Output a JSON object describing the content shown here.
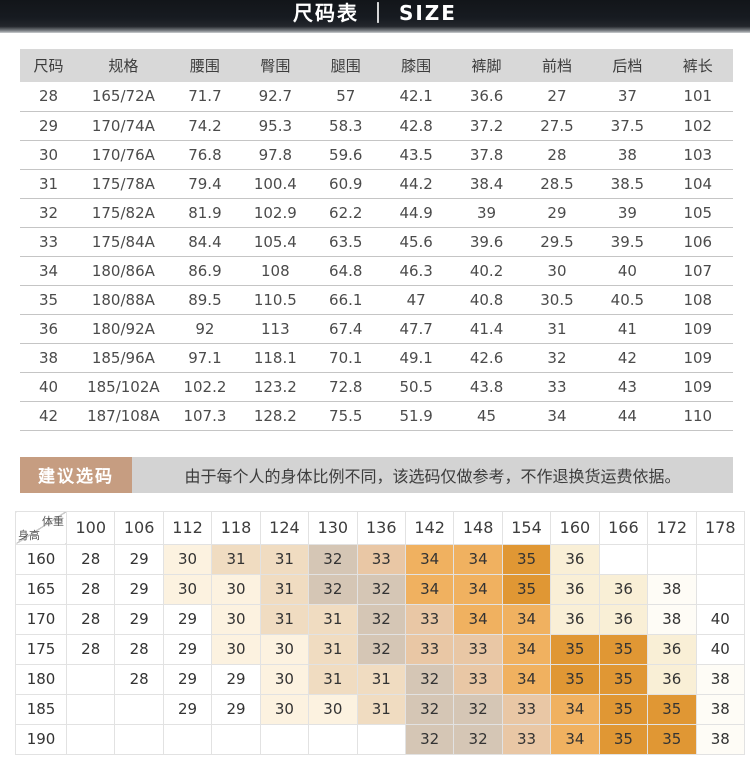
{
  "banner": {
    "title": "尺码表 ｜ SIZE",
    "bg_color": "#171b21",
    "text_color": "#ffffff"
  },
  "size_table": {
    "headers": [
      "尺码",
      "规格",
      "腰围",
      "臀围",
      "腿围",
      "膝围",
      "裤脚",
      "前档",
      "后档",
      "裤长"
    ],
    "rows": [
      [
        "28",
        "165/72A",
        "71.7",
        "92.7",
        "57",
        "42.1",
        "36.6",
        "27",
        "37",
        "101"
      ],
      [
        "29",
        "170/74A",
        "74.2",
        "95.3",
        "58.3",
        "42.8",
        "37.2",
        "27.5",
        "37.5",
        "102"
      ],
      [
        "30",
        "170/76A",
        "76.8",
        "97.8",
        "59.6",
        "43.5",
        "37.8",
        "28",
        "38",
        "103"
      ],
      [
        "31",
        "175/78A",
        "79.4",
        "100.4",
        "60.9",
        "44.2",
        "38.4",
        "28.5",
        "38.5",
        "104"
      ],
      [
        "32",
        "175/82A",
        "81.9",
        "102.9",
        "62.2",
        "44.9",
        "39",
        "29",
        "39",
        "105"
      ],
      [
        "33",
        "175/84A",
        "84.4",
        "105.4",
        "63.5",
        "45.6",
        "39.6",
        "29.5",
        "39.5",
        "106"
      ],
      [
        "34",
        "180/86A",
        "86.9",
        "108",
        "64.8",
        "46.3",
        "40.2",
        "30",
        "40",
        "107"
      ],
      [
        "35",
        "180/88A",
        "89.5",
        "110.5",
        "66.1",
        "47",
        "40.8",
        "30.5",
        "40.5",
        "108"
      ],
      [
        "36",
        "180/92A",
        "92",
        "113",
        "67.4",
        "47.7",
        "41.4",
        "31",
        "41",
        "109"
      ],
      [
        "38",
        "185/96A",
        "97.1",
        "118.1",
        "70.1",
        "49.1",
        "42.6",
        "32",
        "42",
        "109"
      ],
      [
        "40",
        "185/102A",
        "102.2",
        "123.2",
        "72.8",
        "50.5",
        "43.8",
        "33",
        "43",
        "109"
      ],
      [
        "42",
        "187/108A",
        "107.3",
        "128.2",
        "75.5",
        "51.9",
        "45",
        "34",
        "44",
        "110"
      ]
    ]
  },
  "advice": {
    "label": "建议选码",
    "label_bg": "#c69d81",
    "note": "由于每个人的身体比例不同，该选码仅做参考，不作退换货运费依据。",
    "note_bg": "#d3d3d3"
  },
  "matrix": {
    "corner_top": "体重",
    "corner_bottom": "身高",
    "weights": [
      "100",
      "106",
      "112",
      "118",
      "124",
      "130",
      "136",
      "142",
      "148",
      "154",
      "160",
      "166",
      "172",
      "178"
    ],
    "rows": [
      {
        "height": "160",
        "cells": [
          "28",
          "29",
          "30",
          "31",
          "31",
          "32",
          "33",
          "34",
          "34",
          "35",
          "36",
          "",
          "",
          ""
        ]
      },
      {
        "height": "165",
        "cells": [
          "28",
          "29",
          "30",
          "30",
          "31",
          "32",
          "32",
          "34",
          "34",
          "35",
          "36",
          "36",
          "38",
          ""
        ]
      },
      {
        "height": "170",
        "cells": [
          "28",
          "29",
          "29",
          "30",
          "31",
          "31",
          "32",
          "33",
          "34",
          "34",
          "36",
          "36",
          "38",
          "40"
        ]
      },
      {
        "height": "175",
        "cells": [
          "28",
          "28",
          "29",
          "30",
          "30",
          "31",
          "32",
          "33",
          "33",
          "34",
          "35",
          "35",
          "36",
          "40"
        ]
      },
      {
        "height": "180",
        "cells": [
          "",
          "28",
          "29",
          "29",
          "30",
          "31",
          "31",
          "32",
          "33",
          "34",
          "35",
          "35",
          "36",
          "38"
        ]
      },
      {
        "height": "185",
        "cells": [
          "",
          "",
          "29",
          "29",
          "30",
          "30",
          "31",
          "32",
          "32",
          "33",
          "34",
          "35",
          "35",
          "38"
        ]
      },
      {
        "height": "190",
        "cells": [
          "",
          "",
          "",
          "",
          "",
          "",
          "",
          "32",
          "32",
          "33",
          "34",
          "35",
          "35",
          "38"
        ]
      }
    ],
    "value_colors": {
      "28": "#ffffff",
      "29": "#ffffff",
      "30": "#fcf2e0",
      "31": "#f0dcc1",
      "32": "#d5c6b5",
      "33": "#e9c7a5",
      "34": "#f0b160",
      "35": "#e09734",
      "36": "#f9efd6",
      "38": "#fefcf6",
      "40": "#ffffff",
      "": "#ffffff"
    }
  }
}
